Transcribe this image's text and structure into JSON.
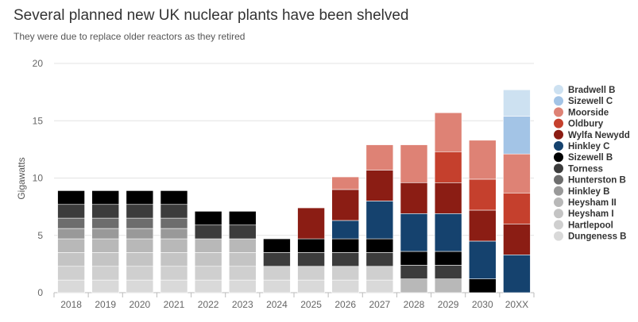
{
  "title": "Several planned new UK nuclear plants have been shelved",
  "subtitle": "They were due to replace older reactors as they retired",
  "chart_data": {
    "type": "bar",
    "stacked": true,
    "categories": [
      "2018",
      "2019",
      "2020",
      "2021",
      "2022",
      "2023",
      "2024",
      "2025",
      "2026",
      "2027",
      "2028",
      "2029",
      "2030",
      "20XX"
    ],
    "ylabel": "Gigawatts",
    "ylim": [
      0,
      20
    ],
    "yticks": [
      0,
      5,
      10,
      15,
      20
    ],
    "grid": true,
    "legend_position": "right",
    "series": [
      {
        "name": "Dungeness B",
        "color": "#d9d9d9",
        "values": [
          1.1,
          1.1,
          1.1,
          1.1,
          1.1,
          1.1,
          1.1,
          1.1,
          1.1,
          1.1,
          0,
          0,
          0,
          0
        ]
      },
      {
        "name": "Hartlepool",
        "color": "#cfcfcf",
        "values": [
          1.2,
          1.2,
          1.2,
          1.2,
          1.2,
          1.2,
          1.2,
          1.2,
          1.2,
          1.2,
          0,
          0,
          0,
          0
        ]
      },
      {
        "name": "Heysham I",
        "color": "#c4c4c4",
        "values": [
          1.2,
          1.2,
          1.2,
          1.2,
          1.2,
          1.2,
          0,
          0,
          0,
          0,
          0,
          0,
          0,
          0
        ]
      },
      {
        "name": "Heysham II",
        "color": "#b8b8b8",
        "values": [
          1.2,
          1.2,
          1.2,
          1.2,
          1.2,
          1.2,
          0,
          0,
          0,
          0,
          1.2,
          1.2,
          0,
          0
        ]
      },
      {
        "name": "Hinkley B",
        "color": "#999999",
        "values": [
          0.9,
          0.9,
          0.9,
          0.9,
          0,
          0,
          0,
          0,
          0,
          0,
          0,
          0,
          0,
          0
        ]
      },
      {
        "name": "Hunterston B",
        "color": "#6d6d6d",
        "values": [
          0.9,
          0.9,
          0.9,
          0.9,
          0,
          0,
          0,
          0,
          0,
          0,
          0,
          0,
          0,
          0
        ]
      },
      {
        "name": "Torness",
        "color": "#3c3c3c",
        "values": [
          1.2,
          1.2,
          1.2,
          1.2,
          1.2,
          1.2,
          1.2,
          1.2,
          1.2,
          1.2,
          1.2,
          1.2,
          0,
          0
        ]
      },
      {
        "name": "Sizewell B",
        "color": "#000000",
        "values": [
          1.2,
          1.2,
          1.2,
          1.2,
          1.2,
          1.2,
          1.2,
          1.2,
          1.2,
          1.2,
          1.2,
          1.2,
          1.2,
          0
        ]
      },
      {
        "name": "Hinkley C",
        "color": "#15426e",
        "values": [
          0,
          0,
          0,
          0,
          0,
          0,
          0,
          0,
          1.6,
          3.3,
          3.3,
          3.3,
          3.3,
          3.3
        ]
      },
      {
        "name": "Wylfa Newydd",
        "color": "#8b1d14",
        "values": [
          0,
          0,
          0,
          0,
          0,
          0,
          0,
          2.7,
          2.7,
          2.7,
          2.7,
          2.7,
          2.7,
          2.7
        ]
      },
      {
        "name": "Oldbury",
        "color": "#c5402d",
        "values": [
          0,
          0,
          0,
          0,
          0,
          0,
          0,
          0,
          0,
          0,
          0,
          2.7,
          2.7,
          2.7
        ]
      },
      {
        "name": "Moorside",
        "color": "#de8275",
        "values": [
          0,
          0,
          0,
          0,
          0,
          0,
          0,
          0,
          1.1,
          2.2,
          3.3,
          3.4,
          3.4,
          3.4
        ]
      },
      {
        "name": "Sizewell C",
        "color": "#a3c4e6",
        "values": [
          0,
          0,
          0,
          0,
          0,
          0,
          0,
          0,
          0,
          0,
          0,
          0,
          0,
          3.3
        ]
      },
      {
        "name": "Bradwell B",
        "color": "#cde1f1",
        "values": [
          0,
          0,
          0,
          0,
          0,
          0,
          0,
          0,
          0,
          0,
          0,
          0,
          0,
          2.3
        ]
      }
    ]
  }
}
